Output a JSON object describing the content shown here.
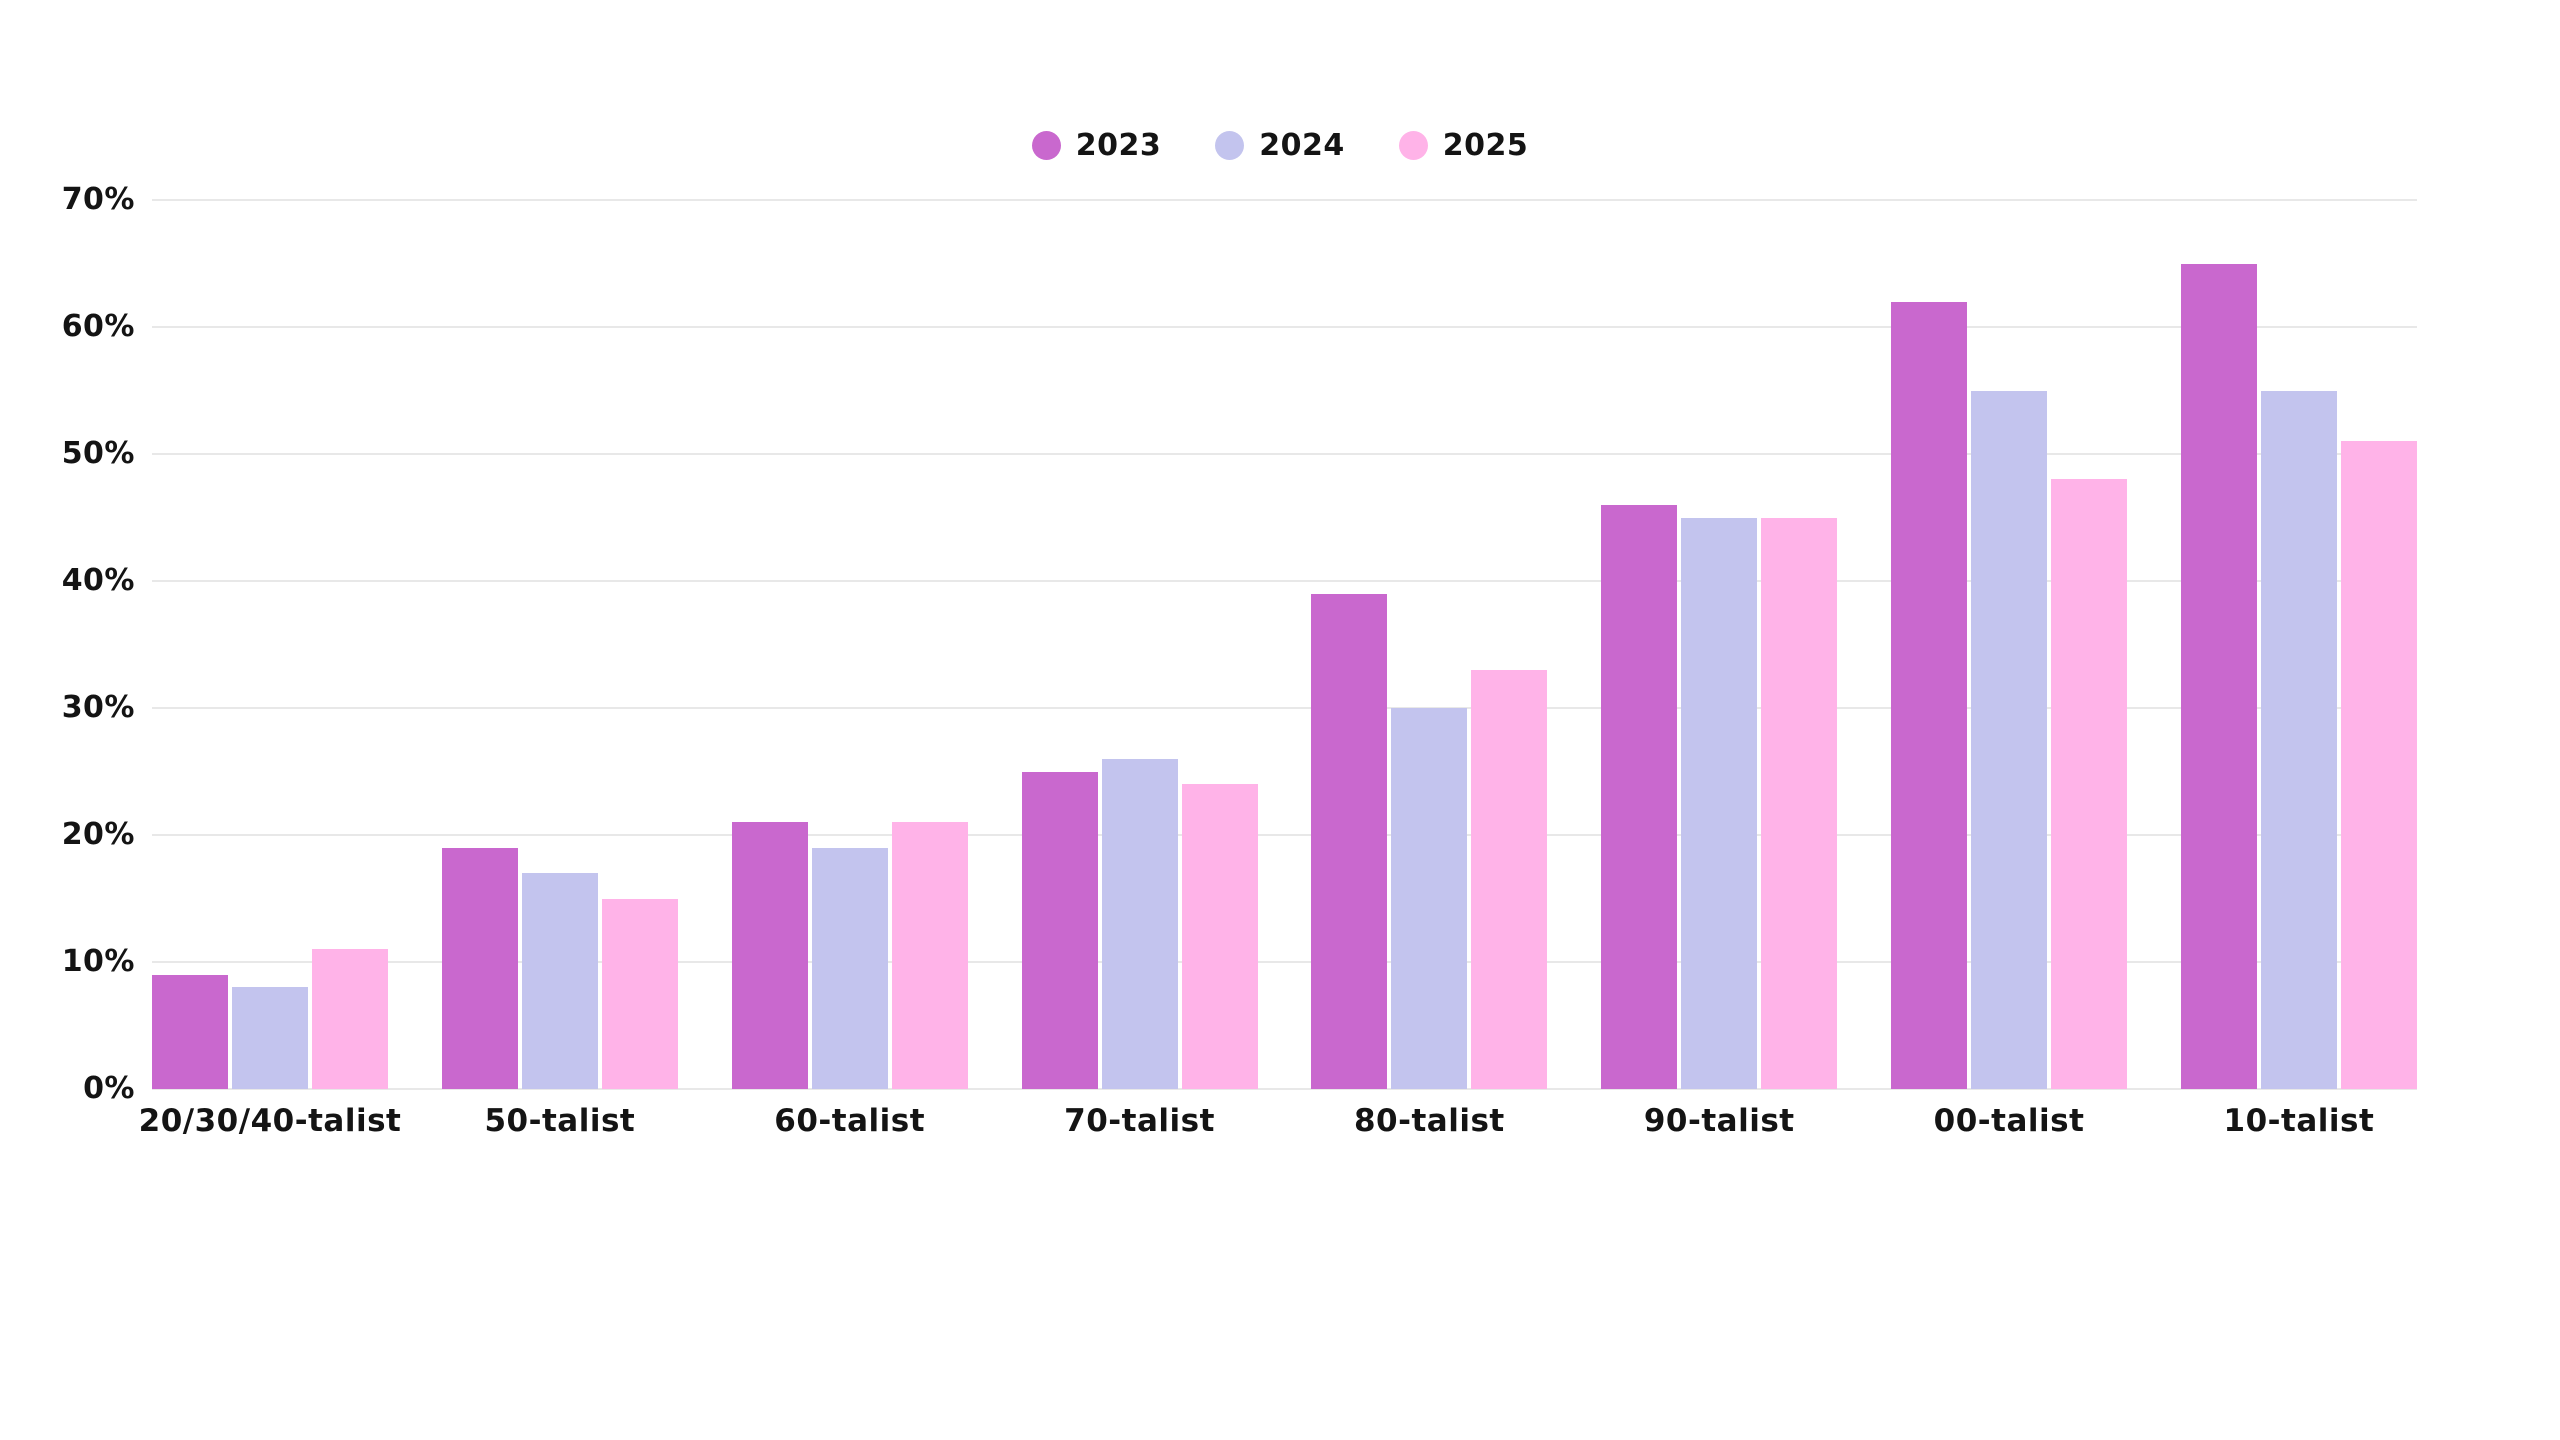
{
  "legend": {
    "items": [
      {
        "label": "2023",
        "color": "#c968ce"
      },
      {
        "label": "2024",
        "color": "#c3c4ee"
      },
      {
        "label": "2025",
        "color": "#ffb3e8"
      }
    ]
  },
  "chart_data": {
    "type": "bar",
    "categories": [
      "20/30/40-talist",
      "50-talist",
      "60-talist",
      "70-talist",
      "80-talist",
      "90-talist",
      "00-talist",
      "10-talist"
    ],
    "series": [
      {
        "name": "2023",
        "color": "#c968ce",
        "values": [
          9,
          19,
          21,
          25,
          39,
          46,
          62,
          65
        ]
      },
      {
        "name": "2024",
        "color": "#c3c4ee",
        "values": [
          8,
          17,
          19,
          26,
          30,
          45,
          55,
          55
        ]
      },
      {
        "name": "2025",
        "color": "#ffb3e8",
        "values": [
          11,
          15,
          21,
          24,
          33,
          45,
          48,
          51
        ]
      }
    ],
    "title": "",
    "xlabel": "",
    "ylabel": "",
    "y_ticks": [
      "0%",
      "10%",
      "20%",
      "30%",
      "40%",
      "50%",
      "60%",
      "70%"
    ],
    "ylim": [
      0,
      70
    ],
    "grid": "horizontal",
    "gridline_color": "#e8e8e8",
    "text_color": "#141414",
    "legend_position": "top-center"
  }
}
